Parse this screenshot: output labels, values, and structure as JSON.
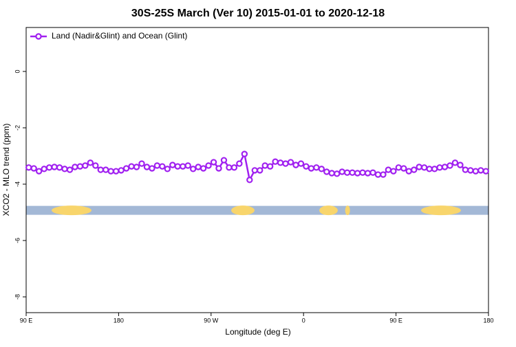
{
  "chart_data": {
    "type": "line",
    "title": "30S-25S March (Ver 10)   2015-01-01 to 2020-12-18",
    "x_label": "Longitude (deg E)",
    "y_label": "XCO2 - MLO trend (ppm)",
    "xlim": [
      90,
      540
    ],
    "xticks": [
      {
        "value": 90,
        "label": "90 E"
      },
      {
        "value": 180,
        "label": "180"
      },
      {
        "value": 270,
        "label": "90 W"
      },
      {
        "value": 360,
        "label": "0"
      },
      {
        "value": 450,
        "label": "90 E"
      },
      {
        "value": 540,
        "label": "180"
      }
    ],
    "ylim": [
      -8.56,
      1.56
    ],
    "yticks": [
      0,
      -2,
      -4,
      -6,
      -8
    ],
    "legend": "top-left",
    "x": [
      92.5,
      97.5,
      102.5,
      107.5,
      112.5,
      117.5,
      122.5,
      127.5,
      132.5,
      137.5,
      142.5,
      147.5,
      152.5,
      157.5,
      162.5,
      167.5,
      172.5,
      177.5,
      182.5,
      187.5,
      192.5,
      197.5,
      202.5,
      207.5,
      212.5,
      217.5,
      222.5,
      227.5,
      232.5,
      237.5,
      242.5,
      247.5,
      252.5,
      257.5,
      262.5,
      267.5,
      272.5,
      277.5,
      282.5,
      287.5,
      292.5,
      297.5,
      302.5,
      307.5,
      312.5,
      317.5,
      322.5,
      327.5,
      332.5,
      337.5,
      342.5,
      347.5,
      352.5,
      357.5,
      362.5,
      367.5,
      372.5,
      377.5,
      382.5,
      387.5,
      392.5,
      397.5,
      402.5,
      407.5,
      412.5,
      417.5,
      422.5,
      427.5,
      432.5,
      437.5,
      442.5,
      447.5,
      452.5,
      457.5,
      462.5,
      467.5,
      472.5,
      477.5,
      482.5,
      487.5,
      492.5,
      497.5,
      502.5,
      507.5,
      512.5,
      517.5,
      522.5,
      527.5,
      532.5,
      537.5
    ],
    "series": [
      {
        "name": "Land (Nadir&Glint) and Ocean (Glint)",
        "color": "#a020f0",
        "values": [
          -3.41,
          -3.44,
          -3.54,
          -3.46,
          -3.41,
          -3.39,
          -3.41,
          -3.46,
          -3.49,
          -3.39,
          -3.37,
          -3.34,
          -3.24,
          -3.34,
          -3.49,
          -3.49,
          -3.54,
          -3.54,
          -3.51,
          -3.44,
          -3.37,
          -3.39,
          -3.27,
          -3.39,
          -3.44,
          -3.34,
          -3.37,
          -3.46,
          -3.32,
          -3.37,
          -3.37,
          -3.34,
          -3.46,
          -3.39,
          -3.44,
          -3.34,
          -3.22,
          -3.44,
          -3.15,
          -3.41,
          -3.41,
          -3.27,
          -2.93,
          -3.85,
          -3.51,
          -3.51,
          -3.34,
          -3.37,
          -3.2,
          -3.24,
          -3.27,
          -3.22,
          -3.32,
          -3.27,
          -3.37,
          -3.44,
          -3.41,
          -3.46,
          -3.56,
          -3.61,
          -3.63,
          -3.56,
          -3.59,
          -3.59,
          -3.61,
          -3.59,
          -3.61,
          -3.59,
          -3.66,
          -3.66,
          -3.49,
          -3.54,
          -3.41,
          -3.44,
          -3.54,
          -3.49,
          -3.39,
          -3.41,
          -3.46,
          -3.46,
          -3.41,
          -3.39,
          -3.34,
          -3.24,
          -3.32,
          -3.49,
          -3.51,
          -3.54,
          -3.51,
          -3.54
        ]
      }
    ],
    "surface_band": {
      "y": -4.93,
      "ocean_color": "#a3b8d6",
      "land_color": "#f8d56c",
      "land": [
        [
          114.8,
          153.6
        ],
        [
          289.6,
          312.3
        ],
        [
          375.3,
          393.3
        ],
        [
          400.5,
          405.2
        ],
        [
          474.4,
          513.2
        ]
      ]
    }
  }
}
